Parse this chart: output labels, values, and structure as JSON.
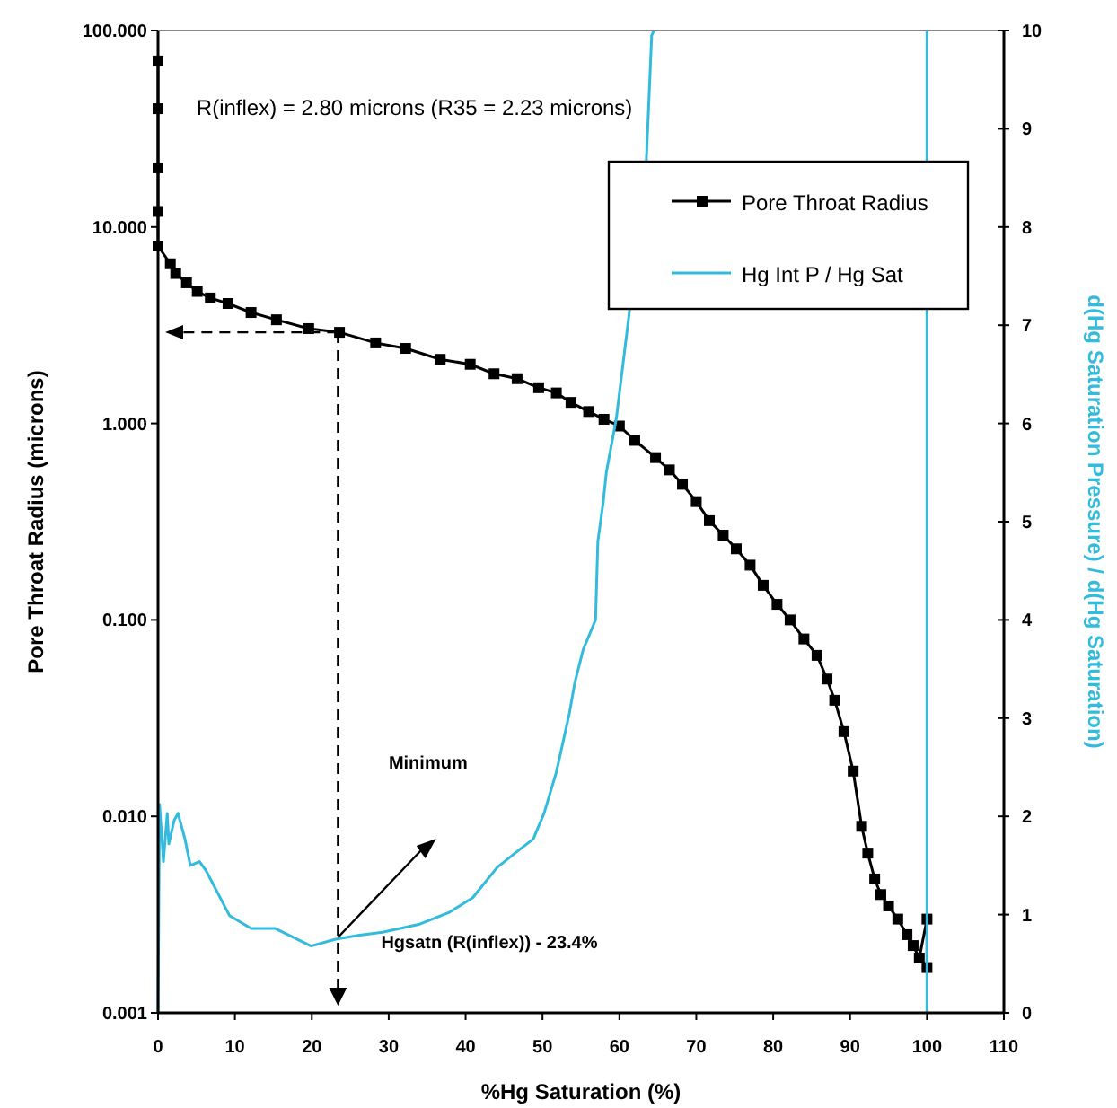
{
  "chart_data": {
    "type": "line",
    "xlabel": "%Hg Saturation (%)",
    "ylabel": "Pore Throat Radius (microns)",
    "y2label": "d(Hg Saturation Pressure) / d(Hg Saturation)",
    "xlim": [
      0,
      110
    ],
    "xticks": [
      0,
      10,
      20,
      30,
      40,
      50,
      60,
      70,
      80,
      90,
      100,
      110
    ],
    "log": "y",
    "ylim": [
      0.001,
      100
    ],
    "yticks": [
      {
        "value": 0.001,
        "label": "0.001"
      },
      {
        "value": 0.01,
        "label": "0.010"
      },
      {
        "value": 0.1,
        "label": "0.100"
      },
      {
        "value": 1,
        "label": "1.000"
      },
      {
        "value": 10,
        "label": "10.000"
      },
      {
        "value": 100,
        "label": "100.000"
      }
    ],
    "y2lim": [
      0,
      10
    ],
    "y2ticks": [
      0,
      1,
      2,
      3,
      4,
      5,
      6,
      7,
      8,
      9,
      10
    ],
    "legend": "top right",
    "grid": false,
    "series": [
      {
        "name": "Pore Throat Radius",
        "color": "#000000",
        "marker": "square",
        "x": [
          0,
          0,
          0,
          0,
          0,
          1.6,
          2.3,
          3.7,
          5.1,
          6.8,
          9.1,
          12.1,
          15.4,
          19.6,
          23.6,
          28.3,
          32.2,
          36.7,
          40.6,
          43.7,
          46.7,
          49.5,
          51.8,
          53.7,
          56,
          58,
          60,
          62,
          64.7,
          66.5,
          68.2,
          70,
          71.7,
          73.5,
          75.2,
          77,
          78.7,
          80.5,
          82.2,
          84,
          85.7,
          87,
          88,
          89.2,
          90.4,
          91.5,
          92.3,
          93.2,
          94,
          95,
          96.2,
          97.4,
          98.2,
          99,
          100,
          100
        ],
        "values": [
          70,
          40,
          20,
          12,
          8,
          6.5,
          5.8,
          5.2,
          4.7,
          4.35,
          4.08,
          3.67,
          3.37,
          3.04,
          2.91,
          2.57,
          2.41,
          2.12,
          2.0,
          1.79,
          1.69,
          1.52,
          1.43,
          1.28,
          1.15,
          1.05,
          0.97,
          0.82,
          0.67,
          0.58,
          0.49,
          0.4,
          0.32,
          0.27,
          0.23,
          0.19,
          0.15,
          0.12,
          0.1,
          0.08,
          0.066,
          0.05,
          0.039,
          0.027,
          0.017,
          0.0089,
          0.0065,
          0.0048,
          0.004,
          0.0035,
          0.003,
          0.0025,
          0.0022,
          0.0019,
          0.003,
          0.0017
        ]
      },
      {
        "name": "Hg Int P / Hg Sat",
        "color": "#33bbdd",
        "marker": "none",
        "axis": "y2",
        "x": [
          0,
          0.2,
          0.7,
          1.2,
          1.4,
          2.1,
          2.6,
          3.5,
          4.2,
          5.4,
          6.3,
          9.3,
          12.1,
          15.2,
          19.9,
          23.1,
          26.2,
          29.2,
          33.9,
          37.8,
          40.9,
          44.1,
          46.5,
          48.8,
          50.2,
          51.8,
          53.5,
          54.2,
          55.3,
          56.9,
          57.2,
          57.9,
          58.3,
          59.6,
          61.2,
          63.5,
          64.2,
          64.5,
          null,
          100,
          100
        ],
        "values": [
          0,
          2.12,
          1.54,
          2.03,
          1.72,
          1.96,
          2.03,
          1.77,
          1.5,
          1.54,
          1.44,
          0.99,
          0.86,
          0.86,
          0.68,
          0.75,
          0.79,
          0.82,
          0.9,
          1.02,
          1.17,
          1.48,
          1.63,
          1.77,
          2.03,
          2.45,
          3.05,
          3.36,
          3.7,
          4.0,
          4.8,
          5.2,
          5.5,
          6.05,
          7.07,
          8.67,
          9.95,
          10,
          null,
          0,
          10
        ]
      }
    ],
    "annotations": [
      "R(inflex) = 2.80 microns  (R35 = 2.23 microns)",
      "Minimum"
    ],
    "ref_lines": [
      {
        "axis": "x",
        "value": 23.4,
        "label": "Hgsatn (R(inflex)) - 23.4%",
        "color": "#000000",
        "line_style": "dashed"
      }
    ]
  }
}
